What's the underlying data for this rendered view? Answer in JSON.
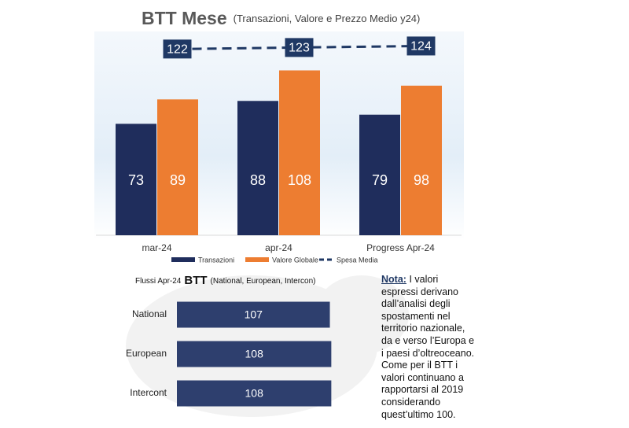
{
  "chart_data": [
    {
      "type": "bar",
      "title": "BTT Mese",
      "subtitle": "(Transazioni, Valore e Prezzo Medio y24)",
      "categories": [
        "mar-24",
        "apr-24",
        "Progress Apr-24"
      ],
      "series": [
        {
          "name": "Transazioni",
          "color": "#1f2d5c",
          "values": [
            73,
            88,
            79
          ]
        },
        {
          "name": "Valore Globale",
          "color": "#ed7d31",
          "values": [
            89,
            108,
            98
          ]
        },
        {
          "name": "Spesa Media",
          "type": "line",
          "color": "#1f3864",
          "values": [
            122,
            123,
            124
          ]
        }
      ],
      "ylim": [
        0,
        150
      ]
    },
    {
      "type": "barh",
      "title": "Flussi Apr-24",
      "title_emphasis": "BTT",
      "subtitle": "(National, European, Intercon)",
      "categories": [
        "National",
        "European",
        "Intercont"
      ],
      "values": [
        107,
        108,
        108
      ],
      "color": "#2e3f6e",
      "xlim": [
        0,
        110
      ]
    }
  ],
  "note": {
    "label": "Nota:",
    "text": "I valori espressi derivano dall’analisi degli spostamenti nel territorio nazionale, da e verso l’Europa e i paesi d’oltreoceano. Come per il BTT i valori continuano a rapportarsi al 2019 considerando quest’ultimo 100."
  }
}
